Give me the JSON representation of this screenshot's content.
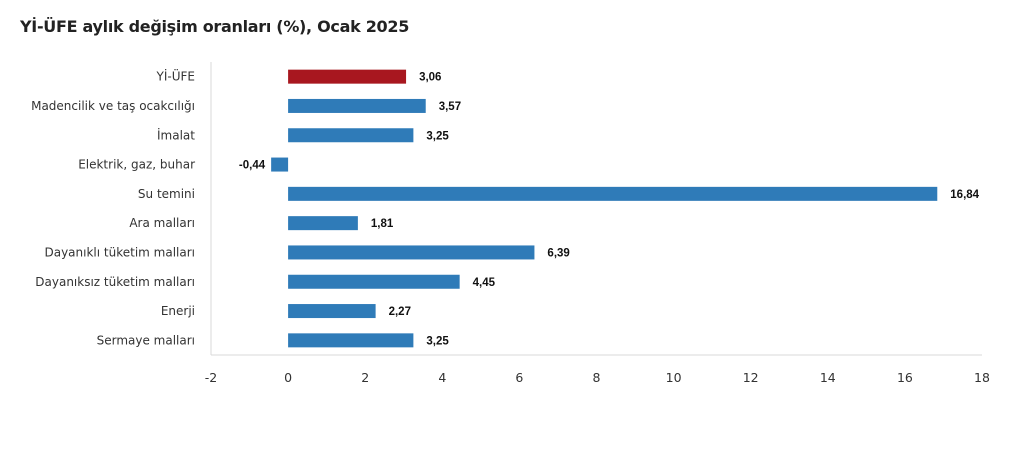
{
  "chart_data": {
    "type": "bar",
    "orientation": "horizontal",
    "title": "Yİ-ÜFE aylık değişim oranları (%), Ocak 2025",
    "categories": [
      "Yİ-ÜFE",
      "Madencilik ve taş ocakcılığı",
      "İmalat",
      "Elektrik, gaz, buhar",
      "Su temini",
      "Ara malları",
      "Dayanıklı tüketim malları",
      "Dayanıksız tüketim malları",
      "Enerji",
      "Sermaye malları"
    ],
    "values": [
      3.06,
      3.57,
      3.25,
      -0.44,
      16.84,
      1.81,
      6.39,
      4.45,
      2.27,
      3.25
    ],
    "data_labels": [
      "3,06",
      "3,57",
      "3,25",
      "-0,44",
      "16,84",
      "1,81",
      "6,39",
      "4,45",
      "2,27",
      "3,25"
    ],
    "xlim": [
      -2,
      18
    ],
    "xticks": [
      "-2",
      "0",
      "2",
      "4",
      "6",
      "8",
      "10",
      "12",
      "14",
      "16",
      "18"
    ],
    "xlabel": "",
    "ylabel": "",
    "grid": false,
    "colors": {
      "highlight": "#a8171f",
      "default": "#2f7bb8"
    }
  }
}
